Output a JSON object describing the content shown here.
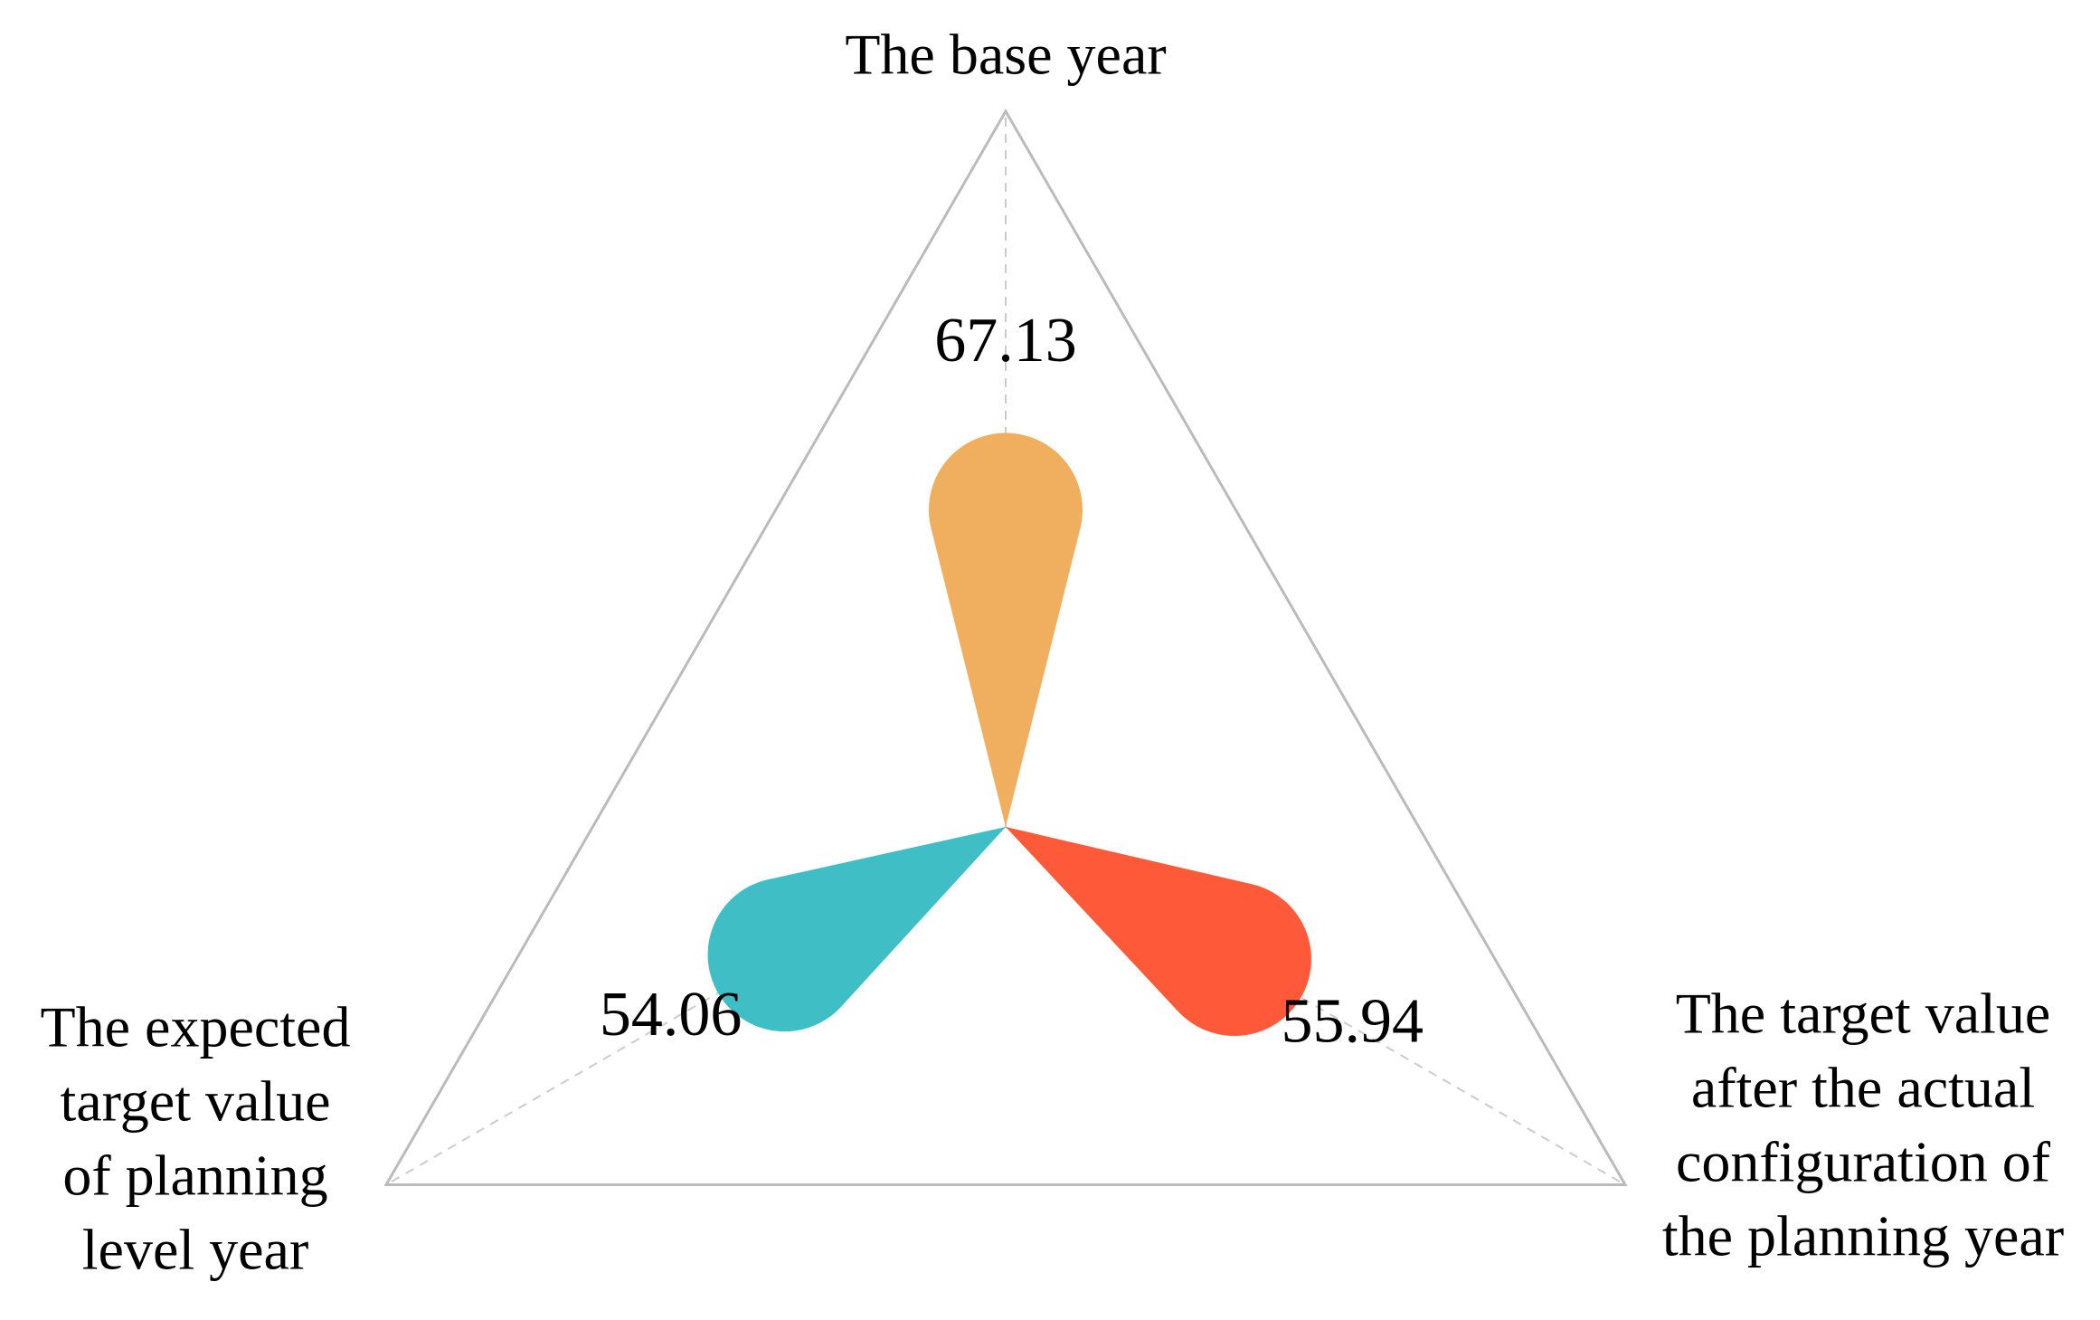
{
  "chart_data": {
    "type": "radar",
    "categories": [
      [
        "The base year"
      ],
      [
        "The expected",
        "target value",
        "of planning",
        "level year"
      ],
      [
        "The target value",
        "after the actual",
        "configuration of",
        "the planning year"
      ]
    ],
    "values": [
      67.13,
      54.06,
      55.94
    ],
    "colors": [
      "#EFAF5E",
      "#40BEC6",
      "#FE5A3A"
    ],
    "rlim": [
      0,
      100
    ]
  }
}
